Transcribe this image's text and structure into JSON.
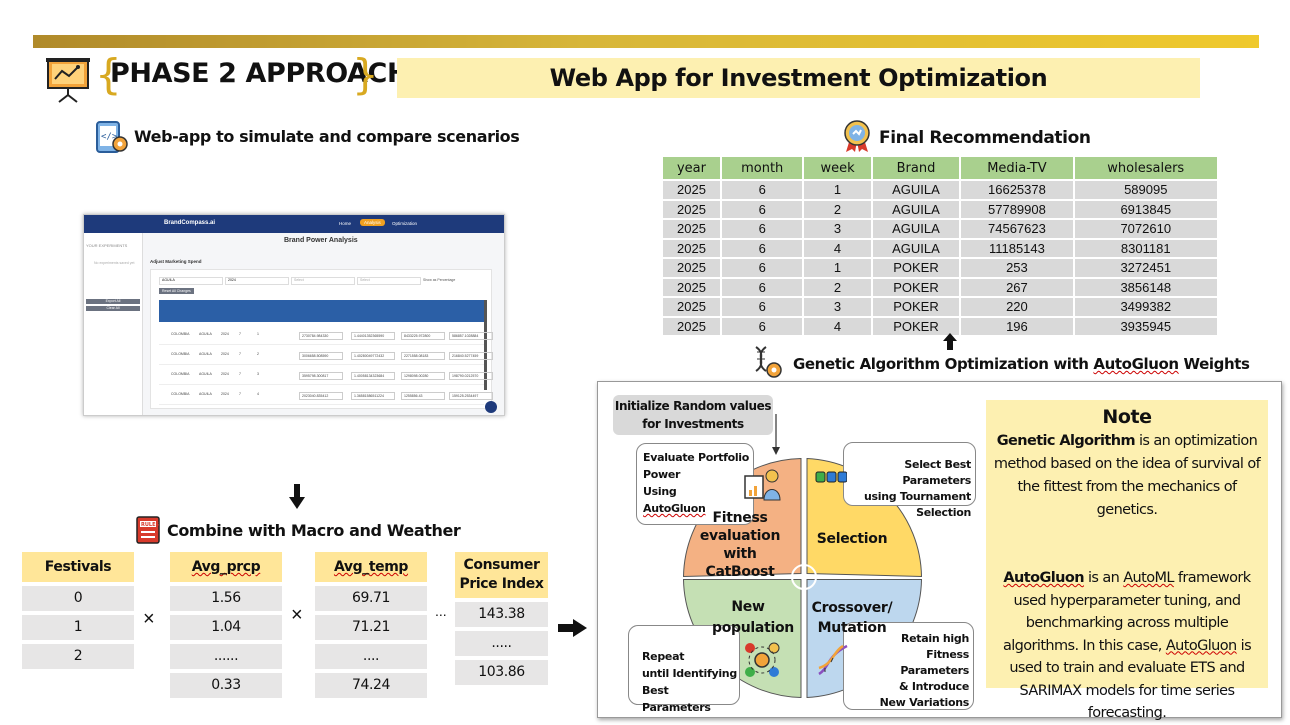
{
  "header": {
    "phase_title": "PHASE 2 APPROACH",
    "banner_title": "Web App for Investment Optimization",
    "accent_color": "#efc92d"
  },
  "left": {
    "webapp_heading": "Web-app to simulate and compare scenarios",
    "app": {
      "brand": "BrandCompass.ai",
      "nav": [
        "Home",
        "Analysis",
        "Optimization"
      ],
      "title": "Brand Power Analysis",
      "section": "Adjust Marketing Spend",
      "sidebar_title": "YOUR EXPERIMENTS",
      "sidebar_sub": "No experiments saved yet",
      "export_btn": "Export All",
      "clear_btn": "Clear All",
      "filters": [
        "AGUILA",
        "2024",
        "Select",
        "Select"
      ],
      "show_pct": "Show as Percentage",
      "reset_btn": "Reset All Changes",
      "rows": [
        [
          "COLOMBIA",
          "AGUILA",
          "2024",
          "7",
          "1",
          "2730784.984330",
          "1.44401352365590",
          "8433225.972800",
          "586857.1028884"
        ],
        [
          "COLOMBIA",
          "AGUILA",
          "2024",
          "7",
          "2",
          "3006658.508590",
          "1.40280049772432",
          "2271558.08183",
          "216840.5277459"
        ],
        [
          "COLOMBIA",
          "AGUILA",
          "2024",
          "7",
          "3",
          "3595798.300817",
          "1.40058134323684",
          "1298098.00280",
          "198790.0212570"
        ],
        [
          "COLOMBIA",
          "AGUILA",
          "2024",
          "7",
          "4",
          "2023040.835412",
          "1.36581586511224",
          "1255856.43",
          "159125.2534497"
        ]
      ]
    },
    "combine_heading": "Combine with Macro and Weather",
    "macro_columns": [
      {
        "header": "Festivals",
        "cells": [
          "0",
          "1",
          "2"
        ]
      },
      {
        "header": "Avg_prcp",
        "cells": [
          "1.56",
          "1.04",
          "......",
          "0.33"
        ]
      },
      {
        "header": "Avg_temp",
        "cells": [
          "69.71",
          "71.21",
          "....",
          "74.24"
        ]
      },
      {
        "header": "Consumer Price Index",
        "cells": [
          "143.38",
          ".....",
          "103.86"
        ]
      }
    ],
    "times": "×",
    "ellipsis": "..."
  },
  "recommendation": {
    "heading": "Final Recommendation",
    "columns": [
      "year",
      "month",
      "week",
      "Brand",
      "Media-TV",
      "wholesalers"
    ],
    "rows": [
      [
        "2025",
        "6",
        "1",
        "AGUILA",
        "16625378",
        "589095"
      ],
      [
        "2025",
        "6",
        "2",
        "AGUILA",
        "57789908",
        "6913845"
      ],
      [
        "2025",
        "6",
        "3",
        "AGUILA",
        "74567623",
        "7072610"
      ],
      [
        "2025",
        "6",
        "4",
        "AGUILA",
        "11185143",
        "8301181"
      ],
      [
        "2025",
        "6",
        "1",
        "POKER",
        "253",
        "3272451"
      ],
      [
        "2025",
        "6",
        "2",
        "POKER",
        "267",
        "3856148"
      ],
      [
        "2025",
        "6",
        "3",
        "POKER",
        "220",
        "3499382"
      ],
      [
        "2025",
        "6",
        "4",
        "POKER",
        "196",
        "3935945"
      ]
    ],
    "header_color": "#a9d08e",
    "cell_color": "#d9d9d9"
  },
  "ga": {
    "heading_prefix": "Genetic Algorithm Optimization with ",
    "heading_autogluon": "AutoGluon",
    "heading_suffix": " Weights",
    "init_box": "Initialize Random values for Investments",
    "eval_box": [
      "Evaluate Portfolio",
      "Power",
      "Using",
      "AutoGluon"
    ],
    "select_box": [
      "Select Best Parameters",
      "using Tournament",
      "Selection"
    ],
    "repeat_box": [
      "Repeat",
      "until Identifying",
      "Best Parameters"
    ],
    "retain_box": [
      "Retain high",
      "Fitness",
      "Parameters",
      "& Introduce",
      "New Variations"
    ],
    "segments": {
      "fitness": "Fitness evaluation with CatBoost",
      "selection": "Selection",
      "population": "New population",
      "crossover": "Crossover/ Mutation"
    },
    "colors": {
      "fitness": "#f4b183",
      "selection": "#ffd966",
      "population": "#c5e0b4",
      "crossover": "#bdd7ee"
    }
  },
  "note": {
    "title": "Note",
    "p1_bold": "Genetic Algorithm",
    "p1_rest": " is an optimization method based on the idea of survival of the fittest from the mechanics of genetics.",
    "p2_bold": "AutoGluon",
    "p2_mid1": " is an ",
    "p2_automl": "AutoML",
    "p2_mid2": " framework used hyperparameter tuning, and benchmarking across multiple algorithms. In this case, ",
    "p2_autogluon2": "AutoGluon",
    "p2_rest": " is used to train and evaluate ETS and SARIMAX models for time series forecasting."
  }
}
